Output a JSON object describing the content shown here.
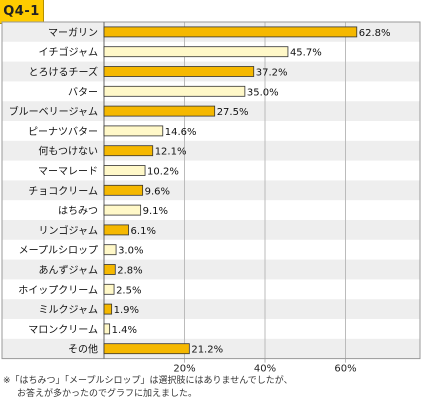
{
  "badge": "Q4-1",
  "note": {
    "line1": "※「はちみつ」「メープルシロップ」は選択肢にはありませんでしたが、",
    "line2": "お答えが多かったのでグラフに加えました。"
  },
  "chart_data": {
    "type": "bar",
    "orientation": "horizontal",
    "categories": [
      "マーガリン",
      "イチゴジャム",
      "とろけるチーズ",
      "バター",
      "ブルーベリージャム",
      "ピーナツバター",
      "何もつけない",
      "マーマレード",
      "チョコクリーム",
      "はちみつ",
      "リンゴジャム",
      "メープルシロップ",
      "あんずジャム",
      "ホイップクリーム",
      "ミルクジャム",
      "マロンクリーム",
      "その他"
    ],
    "values": [
      62.8,
      45.7,
      37.2,
      35.0,
      27.5,
      14.6,
      12.1,
      10.2,
      9.6,
      9.1,
      6.1,
      3.0,
      2.8,
      2.5,
      1.9,
      1.4,
      21.2
    ],
    "value_labels": [
      "62.8%",
      "45.7%",
      "37.2%",
      "35.0%",
      "27.5%",
      "14.6%",
      "12.1%",
      "10.2%",
      "9.6%",
      "9.1%",
      "6.1%",
      "3.0%",
      "2.8%",
      "2.5%",
      "1.9%",
      "1.4%",
      "21.2%"
    ],
    "highlight": [
      true,
      false,
      true,
      false,
      true,
      false,
      true,
      false,
      true,
      false,
      true,
      false,
      true,
      false,
      true,
      false,
      true
    ],
    "xticks": [
      20,
      40,
      60
    ],
    "xtick_labels": [
      "20%",
      "40%",
      "60%"
    ],
    "xlim": [
      0,
      64
    ],
    "grid": true,
    "colors": {
      "bar_highlight": "#f5b800",
      "bar_light": "#fff8c8",
      "bar_border": "#333333",
      "row_alt": "#eeeeee",
      "frame": "#999999"
    }
  }
}
